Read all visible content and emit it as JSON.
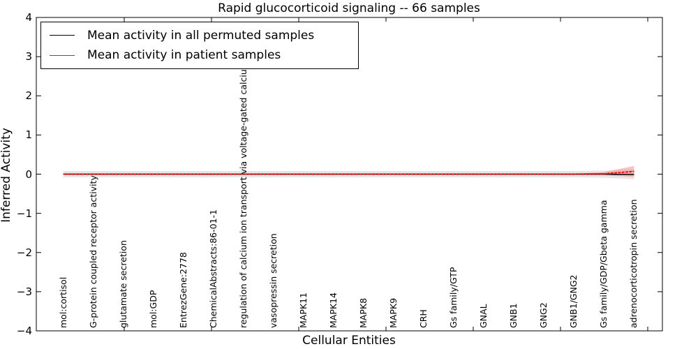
{
  "chart_data": {
    "type": "line",
    "title": "Rapid glucocorticoid signaling -- 66 samples",
    "xlabel": "Cellular Entities",
    "ylabel": "Inferred Activity",
    "ylim": [
      -4,
      4
    ],
    "yticks": [
      "4",
      "3",
      "2",
      "1",
      "0",
      "−1",
      "−2",
      "−3",
      "−4"
    ],
    "grid": false,
    "legend_position": "upper left",
    "categories": [
      "mol:cortisol",
      "G-protein coupled receptor activity",
      "glutamate secretion",
      "mol:GDP",
      "EntrezGene:2778",
      "ChemicalAbstracts:86-01-1",
      "regulation of calcium ion transport via voltage-gated calcium channel",
      "vasopressin secretion",
      "MAPK11",
      "MAPK14",
      "MAPK8",
      "MAPK9",
      "CRH",
      "Gs family/GTP",
      "GNAL",
      "GNB1",
      "GNG2",
      "GNB1/GNG2",
      "Gs family/GDP/Gbeta gamma",
      "adrenocorticotropin secretion"
    ],
    "series": [
      {
        "name": "Mean activity in all permuted samples",
        "color": "#000000",
        "values": [
          0,
          0,
          0,
          0,
          0,
          0,
          0,
          0,
          0,
          0,
          0,
          0,
          0,
          0,
          0,
          0,
          0,
          0,
          0,
          -0.01
        ],
        "band_hi": [
          0.08,
          0.08,
          0.08,
          0.08,
          0.08,
          0.08,
          0.08,
          0.08,
          0.08,
          0.08,
          0.08,
          0.08,
          0.08,
          0.08,
          0.08,
          0.08,
          0.08,
          0.08,
          0.09,
          0.13
        ],
        "band_lo": [
          -0.08,
          -0.08,
          -0.08,
          -0.08,
          -0.08,
          -0.08,
          -0.08,
          -0.08,
          -0.08,
          -0.08,
          -0.08,
          -0.08,
          -0.08,
          -0.08,
          -0.08,
          -0.08,
          -0.08,
          -0.08,
          -0.09,
          -0.13
        ],
        "band_color": "#c8c8c8"
      },
      {
        "name": "Mean activity in patient samples",
        "color": "#ee1111",
        "values": [
          0,
          0,
          0,
          0,
          0,
          0,
          0,
          0,
          0,
          0,
          0,
          0,
          0,
          0,
          0,
          0,
          0,
          0,
          0.01,
          0.07
        ],
        "band_hi": [
          0.015,
          0.015,
          0.015,
          0.015,
          0.015,
          0.015,
          0.015,
          0.015,
          0.015,
          0.015,
          0.015,
          0.015,
          0.015,
          0.015,
          0.015,
          0.015,
          0.015,
          0.015,
          0.05,
          0.21
        ],
        "band_lo": [
          -0.015,
          -0.015,
          -0.015,
          -0.015,
          -0.015,
          -0.015,
          -0.015,
          -0.015,
          -0.015,
          -0.015,
          -0.015,
          -0.015,
          -0.015,
          -0.015,
          -0.015,
          -0.015,
          -0.015,
          -0.015,
          -0.03,
          -0.07
        ],
        "band_color": "#ff7777"
      }
    ]
  }
}
